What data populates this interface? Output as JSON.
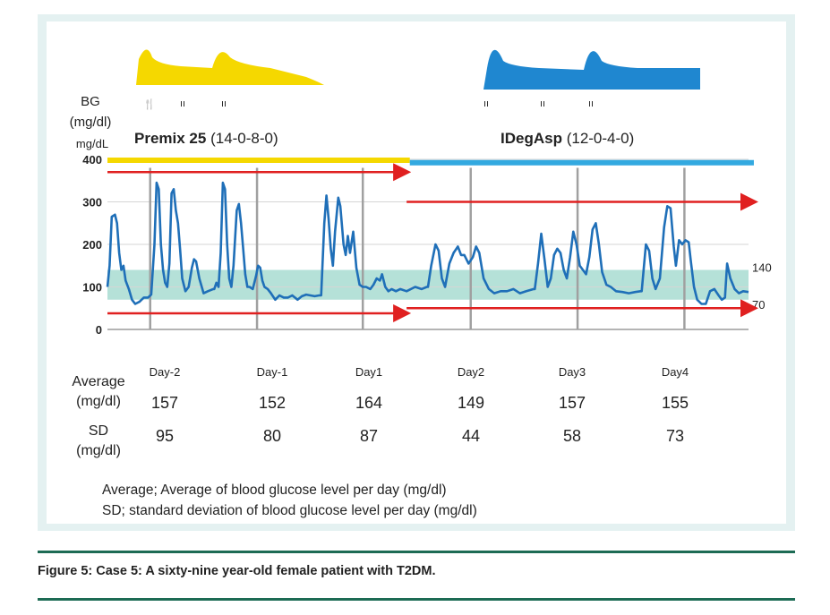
{
  "header": {
    "bg_label": "BG",
    "bg_unit": "(mg/dl)",
    "axis_unit": "mg/dL"
  },
  "regimens": [
    {
      "name": "Premix 25",
      "dose": "(14-0-8-0)",
      "color": "#f5d800"
    },
    {
      "name": "IDegAsp",
      "dose": "(12-0-4-0)",
      "color": "#1f87d0"
    }
  ],
  "chart_data": {
    "type": "line",
    "ylim": [
      0,
      400
    ],
    "yticks": [
      0,
      100,
      200,
      300,
      400
    ],
    "target_range": {
      "low": 70,
      "high": 140,
      "labels": [
        "140",
        "70"
      ],
      "color": "#a8dcd1"
    },
    "days": [
      "Day-2",
      "Day-1",
      "Day1",
      "Day2",
      "Day3",
      "Day4"
    ],
    "series": [
      {
        "color": "#1f6fb8",
        "points": [
          [
            0.0,
            100
          ],
          [
            0.02,
            150
          ],
          [
            0.04,
            265
          ],
          [
            0.07,
            270
          ],
          [
            0.09,
            250
          ],
          [
            0.11,
            180
          ],
          [
            0.13,
            140
          ],
          [
            0.15,
            150
          ],
          [
            0.17,
            115
          ],
          [
            0.2,
            95
          ],
          [
            0.23,
            70
          ],
          [
            0.26,
            60
          ],
          [
            0.3,
            65
          ],
          [
            0.34,
            75
          ],
          [
            0.38,
            75
          ],
          [
            0.41,
            82
          ],
          [
            0.44,
            200
          ],
          [
            0.46,
            345
          ],
          [
            0.48,
            330
          ],
          [
            0.5,
            200
          ],
          [
            0.52,
            140
          ],
          [
            0.54,
            110
          ],
          [
            0.56,
            100
          ],
          [
            0.58,
            155
          ],
          [
            0.6,
            320
          ],
          [
            0.62,
            330
          ],
          [
            0.64,
            280
          ],
          [
            0.66,
            250
          ],
          [
            0.68,
            190
          ],
          [
            0.7,
            120
          ],
          [
            0.73,
            90
          ],
          [
            0.76,
            100
          ],
          [
            0.79,
            145
          ],
          [
            0.81,
            165
          ],
          [
            0.83,
            160
          ],
          [
            0.86,
            120
          ],
          [
            0.9,
            85
          ],
          [
            0.94,
            90
          ],
          [
            0.99,
            95
          ],
          [
            1.0,
            95
          ],
          [
            1.02,
            110
          ],
          [
            1.04,
            100
          ],
          [
            1.06,
            180
          ],
          [
            1.08,
            345
          ],
          [
            1.1,
            330
          ],
          [
            1.12,
            200
          ],
          [
            1.14,
            120
          ],
          [
            1.16,
            100
          ],
          [
            1.18,
            150
          ],
          [
            1.21,
            280
          ],
          [
            1.23,
            295
          ],
          [
            1.25,
            250
          ],
          [
            1.27,
            190
          ],
          [
            1.29,
            130
          ],
          [
            1.31,
            100
          ],
          [
            1.33,
            100
          ],
          [
            1.36,
            95
          ],
          [
            1.39,
            125
          ],
          [
            1.41,
            150
          ],
          [
            1.43,
            145
          ],
          [
            1.45,
            115
          ],
          [
            1.47,
            100
          ],
          [
            1.5,
            95
          ],
          [
            1.53,
            85
          ],
          [
            1.57,
            70
          ],
          [
            1.61,
            80
          ],
          [
            1.65,
            75
          ],
          [
            1.69,
            75
          ],
          [
            1.73,
            80
          ],
          [
            1.78,
            70
          ],
          [
            1.82,
            78
          ],
          [
            1.86,
            82
          ],
          [
            1.9,
            80
          ],
          [
            1.94,
            78
          ],
          [
            1.98,
            80
          ],
          [
            2.0,
            80
          ],
          [
            2.03,
            250
          ],
          [
            2.05,
            315
          ],
          [
            2.07,
            260
          ],
          [
            2.09,
            190
          ],
          [
            2.11,
            150
          ],
          [
            2.13,
            230
          ],
          [
            2.16,
            310
          ],
          [
            2.18,
            290
          ],
          [
            2.21,
            200
          ],
          [
            2.23,
            175
          ],
          [
            2.25,
            220
          ],
          [
            2.27,
            180
          ],
          [
            2.3,
            230
          ],
          [
            2.33,
            145
          ],
          [
            2.36,
            105
          ],
          [
            2.39,
            100
          ],
          [
            2.42,
            100
          ],
          [
            2.46,
            95
          ],
          [
            2.49,
            105
          ],
          [
            2.52,
            120
          ],
          [
            2.55,
            115
          ],
          [
            2.57,
            130
          ],
          [
            2.6,
            100
          ],
          [
            2.63,
            90
          ],
          [
            2.66,
            95
          ],
          [
            2.7,
            90
          ],
          [
            2.74,
            95
          ],
          [
            2.8,
            90
          ],
          [
            2.88,
            100
          ],
          [
            2.94,
            95
          ],
          [
            2.99,
            100
          ],
          [
            3.0,
            100
          ],
          [
            3.03,
            150
          ],
          [
            3.07,
            200
          ],
          [
            3.1,
            185
          ],
          [
            3.13,
            120
          ],
          [
            3.16,
            100
          ],
          [
            3.2,
            155
          ],
          [
            3.24,
            180
          ],
          [
            3.28,
            195
          ],
          [
            3.31,
            175
          ],
          [
            3.34,
            175
          ],
          [
            3.38,
            155
          ],
          [
            3.42,
            170
          ],
          [
            3.45,
            195
          ],
          [
            3.48,
            180
          ],
          [
            3.52,
            120
          ],
          [
            3.57,
            95
          ],
          [
            3.62,
            85
          ],
          [
            3.68,
            90
          ],
          [
            3.74,
            90
          ],
          [
            3.8,
            95
          ],
          [
            3.86,
            85
          ],
          [
            3.92,
            90
          ],
          [
            3.99,
            95
          ],
          [
            4.0,
            95
          ],
          [
            4.03,
            155
          ],
          [
            4.06,
            225
          ],
          [
            4.09,
            165
          ],
          [
            4.12,
            100
          ],
          [
            4.15,
            120
          ],
          [
            4.18,
            175
          ],
          [
            4.21,
            190
          ],
          [
            4.24,
            180
          ],
          [
            4.27,
            140
          ],
          [
            4.3,
            120
          ],
          [
            4.33,
            170
          ],
          [
            4.36,
            230
          ],
          [
            4.39,
            200
          ],
          [
            4.42,
            150
          ],
          [
            4.45,
            140
          ],
          [
            4.48,
            130
          ],
          [
            4.51,
            170
          ],
          [
            4.54,
            235
          ],
          [
            4.57,
            250
          ],
          [
            4.6,
            200
          ],
          [
            4.63,
            135
          ],
          [
            4.67,
            105
          ],
          [
            4.71,
            100
          ],
          [
            4.76,
            90
          ],
          [
            4.82,
            88
          ],
          [
            4.88,
            85
          ],
          [
            4.94,
            88
          ],
          [
            4.99,
            90
          ],
          [
            5.0,
            90
          ],
          [
            5.04,
            200
          ],
          [
            5.07,
            185
          ],
          [
            5.1,
            120
          ],
          [
            5.13,
            95
          ],
          [
            5.17,
            120
          ],
          [
            5.21,
            240
          ],
          [
            5.24,
            290
          ],
          [
            5.27,
            285
          ],
          [
            5.3,
            195
          ],
          [
            5.32,
            150
          ],
          [
            5.35,
            210
          ],
          [
            5.38,
            200
          ],
          [
            5.41,
            210
          ],
          [
            5.44,
            205
          ],
          [
            5.46,
            160
          ],
          [
            5.49,
            100
          ],
          [
            5.52,
            70
          ],
          [
            5.56,
            60
          ],
          [
            5.6,
            60
          ],
          [
            5.64,
            90
          ],
          [
            5.68,
            95
          ],
          [
            5.72,
            80
          ],
          [
            5.75,
            70
          ],
          [
            5.78,
            75
          ],
          [
            5.8,
            155
          ],
          [
            5.83,
            120
          ],
          [
            5.87,
            95
          ],
          [
            5.91,
            85
          ],
          [
            5.95,
            90
          ],
          [
            6.0,
            88
          ]
        ]
      }
    ],
    "arrows": [
      {
        "from_day": 0,
        "to_day": 2.8,
        "value": 370,
        "color": "#e02020"
      },
      {
        "from_day": 0,
        "to_day": 2.8,
        "value": 38,
        "color": "#e02020"
      },
      {
        "from_day": 2.8,
        "to_day": 6.05,
        "value": 300,
        "color": "#e02020"
      },
      {
        "from_day": 2.8,
        "to_day": 6.05,
        "value": 50,
        "color": "#e02020"
      }
    ],
    "regimen_bars": [
      {
        "from_day": 0,
        "to_day": 2.83,
        "value": 398,
        "color": "#f5d800"
      },
      {
        "from_day": 2.83,
        "to_day": 6.05,
        "value": 392,
        "color": "#33a9e0"
      }
    ],
    "day_dividers": [
      0.4,
      1.4,
      2.39,
      3.4,
      4.4,
      5.4
    ]
  },
  "stats": {
    "average_label": [
      "Average",
      "(mg/dl)"
    ],
    "sd_label": [
      "SD",
      "(mg/dl)"
    ],
    "average_values": [
      "157",
      "152",
      "164",
      "149",
      "157",
      "155"
    ],
    "sd_values": [
      "95",
      "80",
      "87",
      "44",
      "58",
      "73"
    ]
  },
  "footnotes": {
    "line1": "Average;  Average of blood glucose level per day (mg/dl)",
    "line2": "SD; standard deviation of blood glucose level per day (mg/dl)"
  },
  "caption": "Figure 5: Case 5: A sixty-nine year-old female patient with T2DM.",
  "icons": [
    "meal-icon"
  ]
}
